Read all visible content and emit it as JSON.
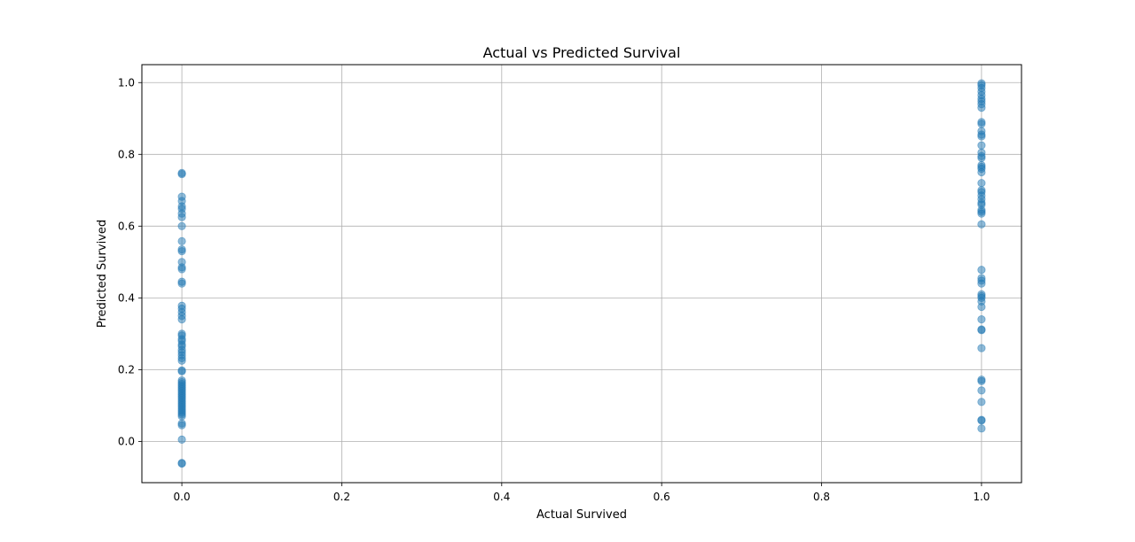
{
  "chart_data": {
    "type": "scatter",
    "title": "Actual vs Predicted Survival",
    "xlabel": "Actual Survived",
    "ylabel": "Predicted Survived",
    "xlim": [
      -0.05,
      1.05
    ],
    "ylim": [
      -0.115,
      1.05
    ],
    "xticks": [
      "0.0",
      "0.2",
      "0.4",
      "0.6",
      "0.8",
      "1.0"
    ],
    "yticks": [
      "0.0",
      "0.2",
      "0.4",
      "0.6",
      "0.8",
      "1.0"
    ],
    "grid": true,
    "marker_color": "#1f77b4",
    "marker_alpha": 0.5,
    "series": [
      {
        "points": [
          [
            0,
            0.745
          ],
          [
            0,
            0.748
          ],
          [
            0,
            0.682
          ],
          [
            0,
            0.67
          ],
          [
            0,
            0.655
          ],
          [
            0,
            0.648
          ],
          [
            0,
            0.635
          ],
          [
            0,
            0.625
          ],
          [
            0,
            0.6
          ],
          [
            0,
            0.558
          ],
          [
            0,
            0.535
          ],
          [
            0,
            0.53
          ],
          [
            0,
            0.5
          ],
          [
            0,
            0.485
          ],
          [
            0,
            0.48
          ],
          [
            0,
            0.445
          ],
          [
            0,
            0.44
          ],
          [
            0,
            0.378
          ],
          [
            0,
            0.37
          ],
          [
            0,
            0.36
          ],
          [
            0,
            0.35
          ],
          [
            0,
            0.34
          ],
          [
            0,
            0.3
          ],
          [
            0,
            0.295
          ],
          [
            0,
            0.285
          ],
          [
            0,
            0.28
          ],
          [
            0,
            0.27
          ],
          [
            0,
            0.265
          ],
          [
            0,
            0.255
          ],
          [
            0,
            0.248
          ],
          [
            0,
            0.24
          ],
          [
            0,
            0.232
          ],
          [
            0,
            0.225
          ],
          [
            0,
            0.198
          ],
          [
            0,
            0.195
          ],
          [
            0,
            0.17
          ],
          [
            0,
            0.165
          ],
          [
            0,
            0.16
          ],
          [
            0,
            0.155
          ],
          [
            0,
            0.15
          ],
          [
            0,
            0.145
          ],
          [
            0,
            0.14
          ],
          [
            0,
            0.135
          ],
          [
            0,
            0.13
          ],
          [
            0,
            0.125
          ],
          [
            0,
            0.12
          ],
          [
            0,
            0.115
          ],
          [
            0,
            0.11
          ],
          [
            0,
            0.105
          ],
          [
            0,
            0.1
          ],
          [
            0,
            0.095
          ],
          [
            0,
            0.09
          ],
          [
            0,
            0.085
          ],
          [
            0,
            0.08
          ],
          [
            0,
            0.075
          ],
          [
            0,
            0.07
          ],
          [
            0,
            0.05
          ],
          [
            0,
            0.045
          ],
          [
            0,
            0.005
          ],
          [
            0,
            -0.06
          ],
          [
            0,
            -0.062
          ],
          [
            1,
            0.998
          ],
          [
            1,
            0.993
          ],
          [
            1,
            0.985
          ],
          [
            1,
            0.975
          ],
          [
            1,
            0.965
          ],
          [
            1,
            0.955
          ],
          [
            1,
            0.948
          ],
          [
            1,
            0.94
          ],
          [
            1,
            0.93
          ],
          [
            1,
            0.89
          ],
          [
            1,
            0.885
          ],
          [
            1,
            0.865
          ],
          [
            1,
            0.855
          ],
          [
            1,
            0.85
          ],
          [
            1,
            0.825
          ],
          [
            1,
            0.805
          ],
          [
            1,
            0.795
          ],
          [
            1,
            0.79
          ],
          [
            1,
            0.77
          ],
          [
            1,
            0.765
          ],
          [
            1,
            0.76
          ],
          [
            1,
            0.75
          ],
          [
            1,
            0.72
          ],
          [
            1,
            0.7
          ],
          [
            1,
            0.695
          ],
          [
            1,
            0.685
          ],
          [
            1,
            0.675
          ],
          [
            1,
            0.665
          ],
          [
            1,
            0.66
          ],
          [
            1,
            0.645
          ],
          [
            1,
            0.64
          ],
          [
            1,
            0.635
          ],
          [
            1,
            0.605
          ],
          [
            1,
            0.478
          ],
          [
            1,
            0.455
          ],
          [
            1,
            0.448
          ],
          [
            1,
            0.44
          ],
          [
            1,
            0.41
          ],
          [
            1,
            0.405
          ],
          [
            1,
            0.4
          ],
          [
            1,
            0.39
          ],
          [
            1,
            0.375
          ],
          [
            1,
            0.34
          ],
          [
            1,
            0.312
          ],
          [
            1,
            0.31
          ],
          [
            1,
            0.26
          ],
          [
            1,
            0.172
          ],
          [
            1,
            0.168
          ],
          [
            1,
            0.142
          ],
          [
            1,
            0.11
          ],
          [
            1,
            0.06
          ],
          [
            1,
            0.058
          ],
          [
            1,
            0.036
          ]
        ]
      }
    ]
  }
}
